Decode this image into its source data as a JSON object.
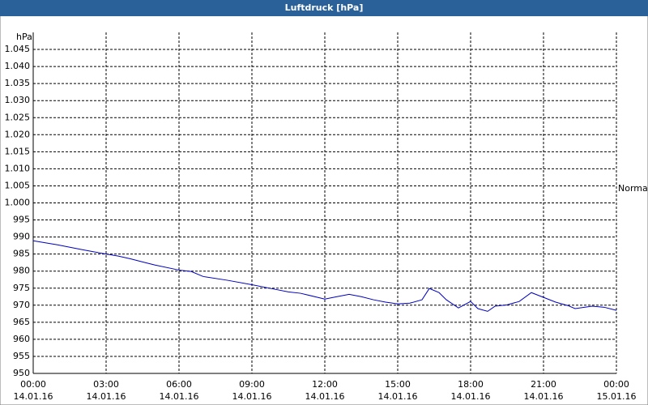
{
  "chart_data": {
    "type": "line",
    "title": "Luftdruck [hPa]",
    "y_label": "hPa",
    "annotation": "Normal",
    "x": [
      0,
      1,
      2,
      3,
      3.5,
      4,
      4.5,
      5,
      6,
      6.5,
      7,
      8,
      9,
      10,
      10.5,
      11,
      12,
      12.5,
      13,
      13.5,
      14,
      14.5,
      15,
      15.5,
      16,
      16.3,
      16.7,
      17,
      17.5,
      18,
      18.3,
      18.7,
      19,
      19.5,
      20,
      20.5,
      21,
      21.5,
      22,
      22.3,
      23,
      23.5,
      24
    ],
    "series": [
      {
        "name": "Luftdruck",
        "color": "#0000c0",
        "values": [
          988.9,
          987.7,
          986.3,
          985,
          984.4,
          983.6,
          982.7,
          981.8,
          980.3,
          979.9,
          978.4,
          977.3,
          976,
          974.6,
          973.9,
          973.5,
          971.8,
          972.5,
          973.2,
          972.5,
          971.6,
          970.9,
          970.4,
          970.6,
          971.6,
          974.9,
          973.7,
          971.6,
          969.2,
          971.1,
          969,
          968.2,
          969.7,
          970.1,
          971.1,
          973.7,
          972.3,
          970.9,
          969.9,
          969,
          969.7,
          969.4,
          968.5
        ]
      }
    ],
    "xlim": [
      0,
      24
    ],
    "xticks": [
      {
        "value": 0,
        "label": "00:00"
      },
      {
        "value": 3,
        "label": "03:00"
      },
      {
        "value": 6,
        "label": "06:00"
      },
      {
        "value": 9,
        "label": "09:00"
      },
      {
        "value": 12,
        "label": "12:00"
      },
      {
        "value": 15,
        "label": "15:00"
      },
      {
        "value": 18,
        "label": "18:00"
      },
      {
        "value": 21,
        "label": "21:00"
      },
      {
        "value": 24,
        "label": "00:00"
      }
    ],
    "xtick_dates": [
      "14.01.16",
      "14.01.16",
      "14.01.16",
      "14.01.16",
      "14.01.16",
      "14.01.16",
      "14.01.16",
      "14.01.16",
      "15.01.16"
    ],
    "ylim": [
      950,
      1050
    ],
    "yticks": [
      950,
      955,
      960,
      965,
      970,
      975,
      980,
      985,
      990,
      995,
      {
        "value": 1000,
        "label": "1.000"
      },
      {
        "value": 1005,
        "label": "1.005"
      },
      {
        "value": 1010,
        "label": "1.010"
      },
      {
        "value": 1015,
        "label": "1.015"
      },
      {
        "value": 1020,
        "label": "1.020"
      },
      {
        "value": 1025,
        "label": "1.025"
      },
      {
        "value": 1030,
        "label": "1.030"
      },
      {
        "value": 1035,
        "label": "1.035"
      },
      {
        "value": 1040,
        "label": "1.040"
      },
      {
        "value": 1045,
        "label": "1.045"
      }
    ],
    "grid": true
  }
}
